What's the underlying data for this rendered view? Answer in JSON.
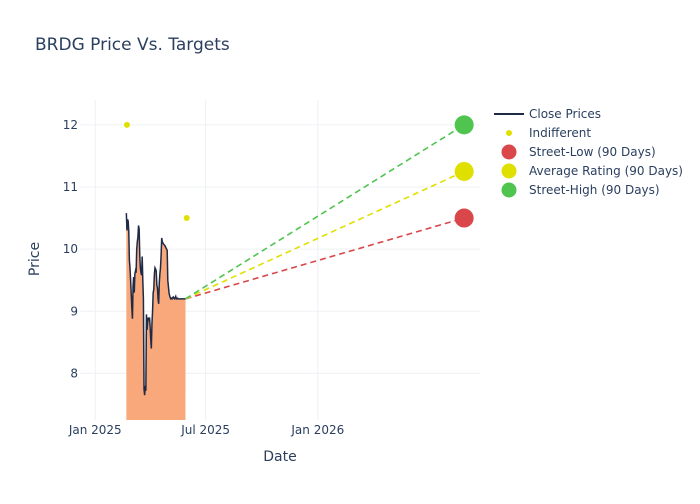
{
  "chart_data": {
    "type": "line",
    "title": "BRDG Price Vs. Targets",
    "xlabel": "Date",
    "ylabel": "Price",
    "x_ticks": [
      "2025-01-01",
      "2025-07-01",
      "2026-01-01"
    ],
    "x_tick_labels": [
      "Jan 2025",
      "Jul 2025",
      "Jan 2026"
    ],
    "y_ticks": [
      8,
      9,
      10,
      11,
      12
    ],
    "y_tick_labels": [
      "8",
      "9",
      "10",
      "11",
      "12"
    ],
    "xlim": [
      "2024-12-07",
      "2026-09-24"
    ],
    "ylim": [
      7.25,
      12.4
    ],
    "grid": true,
    "legend_position": "top-right",
    "series": [
      {
        "name": "Close Prices",
        "kind": "line_area",
        "color": "#1f2a44",
        "fill_color": "#f9a87c",
        "x": [
          "2025-02-21",
          "2025-02-22",
          "2025-02-23",
          "2025-02-24",
          "2025-02-25",
          "2025-02-26",
          "2025-02-27",
          "2025-02-28",
          "2025-03-01",
          "2025-03-02",
          "2025-03-03",
          "2025-03-04",
          "2025-03-05",
          "2025-03-06",
          "2025-03-07",
          "2025-03-08",
          "2025-03-09",
          "2025-03-10",
          "2025-03-11",
          "2025-03-12",
          "2025-03-13",
          "2025-03-14",
          "2025-03-15",
          "2025-03-16",
          "2025-03-17",
          "2025-03-18",
          "2025-03-19",
          "2025-03-20",
          "2025-03-21",
          "2025-03-22",
          "2025-03-23",
          "2025-03-24",
          "2025-03-25",
          "2025-03-26",
          "2025-03-27",
          "2025-03-28",
          "2025-03-29",
          "2025-03-30",
          "2025-03-31",
          "2025-04-01",
          "2025-04-02",
          "2025-04-03",
          "2025-04-04",
          "2025-04-05",
          "2025-04-06",
          "2025-04-07",
          "2025-04-08",
          "2025-04-09",
          "2025-04-10",
          "2025-04-11",
          "2025-04-12",
          "2025-04-13",
          "2025-04-14",
          "2025-04-15",
          "2025-04-16",
          "2025-04-17",
          "2025-04-18",
          "2025-04-19",
          "2025-04-20",
          "2025-04-21",
          "2025-04-22",
          "2025-04-23",
          "2025-04-24",
          "2025-04-25",
          "2025-04-26",
          "2025-04-27",
          "2025-04-28",
          "2025-04-29",
          "2025-04-30",
          "2025-05-01",
          "2025-05-02",
          "2025-05-03",
          "2025-05-04",
          "2025-05-05",
          "2025-05-06",
          "2025-05-07",
          "2025-05-08",
          "2025-05-09",
          "2025-05-10",
          "2025-05-11",
          "2025-05-12",
          "2025-05-13",
          "2025-05-14",
          "2025-05-15",
          "2025-05-16",
          "2025-05-17",
          "2025-05-18",
          "2025-05-19",
          "2025-05-20",
          "2025-05-21",
          "2025-05-22",
          "2025-05-23",
          "2025-05-24",
          "2025-05-25",
          "2025-05-26",
          "2025-05-27",
          "2025-05-28",
          "2025-05-29"
        ],
        "values": [
          10.58,
          10.3,
          10.48,
          10.45,
          10.28,
          9.82,
          9.7,
          9.5,
          9.28,
          9.05,
          8.88,
          9.4,
          9.55,
          9.3,
          9.6,
          9.65,
          9.62,
          10.0,
          10.12,
          10.2,
          10.38,
          10.32,
          9.9,
          9.7,
          9.62,
          9.58,
          9.88,
          9.5,
          9.2,
          7.75,
          7.65,
          7.8,
          7.72,
          8.95,
          8.7,
          8.82,
          8.9,
          8.85,
          8.9,
          8.75,
          8.55,
          8.4,
          8.8,
          9.0,
          9.3,
          9.35,
          9.6,
          9.7,
          9.68,
          9.65,
          9.42,
          9.38,
          9.2,
          9.12,
          9.45,
          9.6,
          9.7,
          9.9,
          10.18,
          10.12,
          10.1,
          10.08,
          10.07,
          10.06,
          10.04,
          10.02,
          10.0,
          9.98,
          9.5,
          9.4,
          9.3,
          9.25,
          9.22,
          9.2,
          9.21,
          9.2,
          9.22,
          9.23,
          9.21,
          9.2,
          9.22,
          9.24,
          9.2,
          9.2,
          9.21,
          9.2,
          9.2,
          9.2,
          9.2,
          9.2,
          9.2,
          9.2,
          9.2,
          9.2,
          9.2,
          9.2,
          9.2,
          9.2
        ]
      },
      {
        "name": "Indifferent",
        "kind": "markers",
        "color": "#e0e000",
        "points": [
          {
            "x": "2025-02-22",
            "y": 12.0
          },
          {
            "x": "2025-05-31",
            "y": 10.5
          }
        ]
      },
      {
        "name": "Street-Low (90 Days)",
        "kind": "target",
        "color": "#d9474b",
        "start": {
          "x": "2025-05-29",
          "y": 9.2
        },
        "end": {
          "x": "2026-08-29",
          "y": 10.5
        }
      },
      {
        "name": "Average Rating (90 Days)",
        "kind": "target",
        "color": "#e0e000",
        "start": {
          "x": "2025-05-29",
          "y": 9.2
        },
        "end": {
          "x": "2026-08-29",
          "y": 11.25
        }
      },
      {
        "name": "Street-High (90 Days)",
        "kind": "target",
        "color": "#4fc44f",
        "start": {
          "x": "2025-05-29",
          "y": 9.2
        },
        "end": {
          "x": "2026-08-29",
          "y": 12.0
        }
      }
    ]
  }
}
